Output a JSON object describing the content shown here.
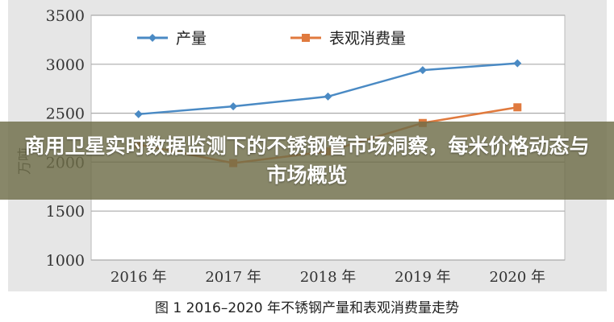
{
  "chart_data": {
    "type": "line",
    "title": "",
    "ylabel": "万吨",
    "xlabel": "",
    "categories": [
      "2016 年",
      "2017 年",
      "2018 年",
      "2019 年",
      "2020 年"
    ],
    "ylim": [
      1000,
      3500
    ],
    "yticks": [
      1000,
      1500,
      2000,
      2500,
      3000,
      3500
    ],
    "grid": true,
    "legend": "top",
    "series": [
      {
        "name": "产量",
        "color": "#4a8ac4",
        "marker": "diamond",
        "values": [
          2490,
          2570,
          2670,
          2940,
          3010
        ]
      },
      {
        "name": "表观消费量",
        "color": "#e07a3e",
        "marker": "square",
        "values": [
          2180,
          1990,
          2110,
          2400,
          2560
        ]
      }
    ]
  },
  "caption": "图 1  2016–2020 年不锈钢产量和表观消费量走势",
  "banner": "商用卫星实时数据监测下的不锈钢管市场洞察，每米价格动态与市场概览"
}
